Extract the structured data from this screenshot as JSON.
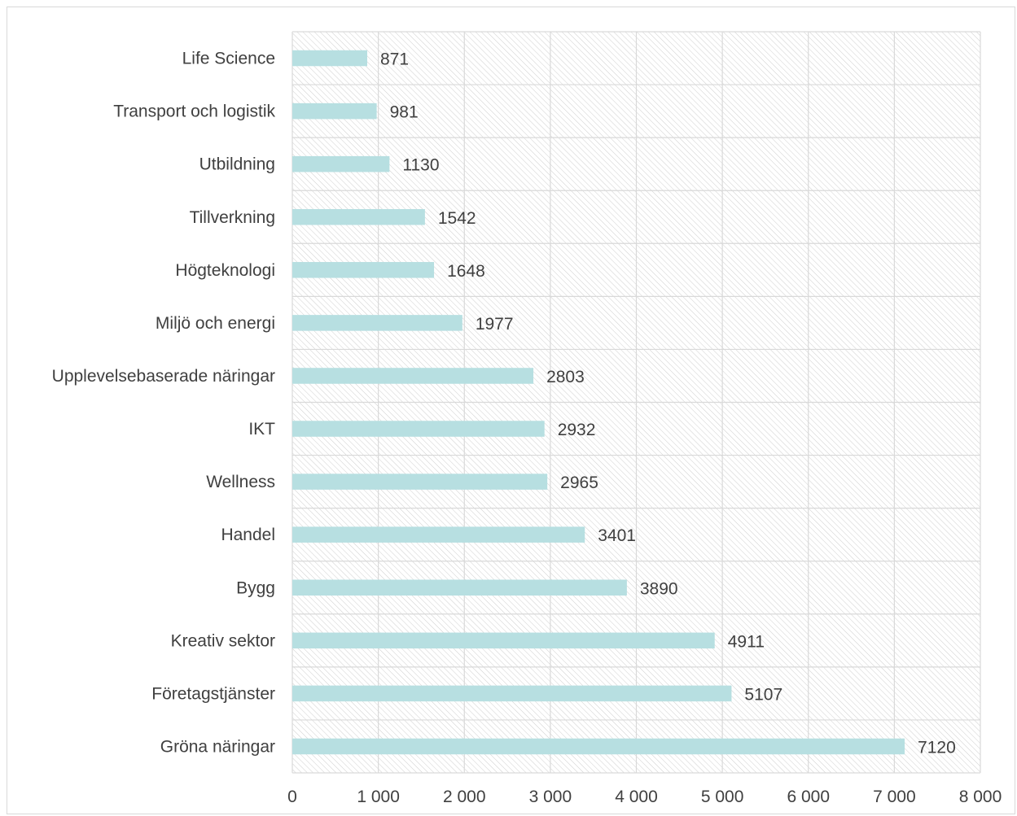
{
  "chart_data": {
    "type": "bar",
    "orientation": "horizontal",
    "categories": [
      "Life Science",
      "Transport och logistik",
      "Utbildning",
      "Tillverkning",
      "Högteknologi",
      "Miljö och energi",
      "Upplevelsebaserade näringar",
      "IKT",
      "Wellness",
      "Handel",
      "Bygg",
      "Kreativ sektor",
      "Företagstjänster",
      "Gröna näringar"
    ],
    "values": [
      871,
      981,
      1130,
      1542,
      1648,
      1977,
      2803,
      2932,
      2965,
      3401,
      3890,
      4911,
      5107,
      7120
    ],
    "value_labels": [
      "871",
      "981",
      "1130",
      "1542",
      "1648",
      "1977",
      "2803",
      "2932",
      "2965",
      "3401",
      "3890",
      "4911",
      "5107",
      "7120"
    ],
    "xlim": [
      0,
      8000
    ],
    "xticks": [
      0,
      1000,
      2000,
      3000,
      4000,
      5000,
      6000,
      7000,
      8000
    ],
    "xtick_labels": [
      "0",
      "1 000",
      "2 000",
      "3 000",
      "4 000",
      "5 000",
      "6 000",
      "7 000",
      "8 000"
    ],
    "title": "",
    "xlabel": "",
    "ylabel": "",
    "grid": true,
    "legend": "none",
    "colors": {
      "bar": "#b7dfe1",
      "grid": "#d9d9d9",
      "hatch": "#c8c8c8",
      "text": "#404040"
    }
  }
}
